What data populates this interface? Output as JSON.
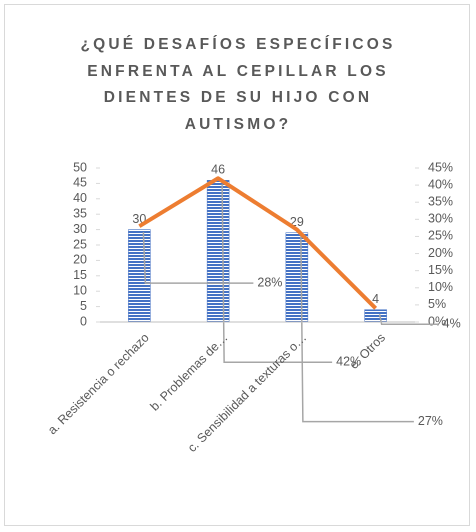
{
  "chart_data": {
    "type": "bar-line",
    "title": "¿QUÉ DESAFÍOS ESPECÍFICOS ENFRENTA AL CEPILLAR LOS DIENTES DE SU HIJO CON AUTISMO?",
    "categories": [
      "a. Resistencia o rechazo",
      "b. Problemas de…",
      "c. Sensibilidad a texturas o…",
      "e. Otros"
    ],
    "series": [
      {
        "type": "bar",
        "color": "#4472c4",
        "values": [
          30,
          46,
          29,
          4
        ]
      },
      {
        "type": "line",
        "color": "#ed7d31",
        "axis": "y2",
        "values": [
          28,
          42,
          27,
          4
        ],
        "value_labels": [
          "28%",
          "42%",
          "27%",
          "4%"
        ]
      }
    ],
    "ylim": [
      0,
      50
    ],
    "yticks": [
      0,
      5,
      10,
      15,
      20,
      25,
      30,
      35,
      40,
      45,
      50
    ],
    "y2lim": [
      0,
      45
    ],
    "y2ticks": [
      {
        "value": 0,
        "label": "0%"
      },
      {
        "value": 5,
        "label": "5%"
      },
      {
        "value": 10,
        "label": "10%"
      },
      {
        "value": 15,
        "label": "15%"
      },
      {
        "value": 20,
        "label": "20%"
      },
      {
        "value": 25,
        "label": "25%"
      },
      {
        "value": 30,
        "label": "30%"
      },
      {
        "value": 35,
        "label": "35%"
      },
      {
        "value": 40,
        "label": "40%"
      },
      {
        "value": 45,
        "label": "45%"
      }
    ],
    "grid": false
  }
}
